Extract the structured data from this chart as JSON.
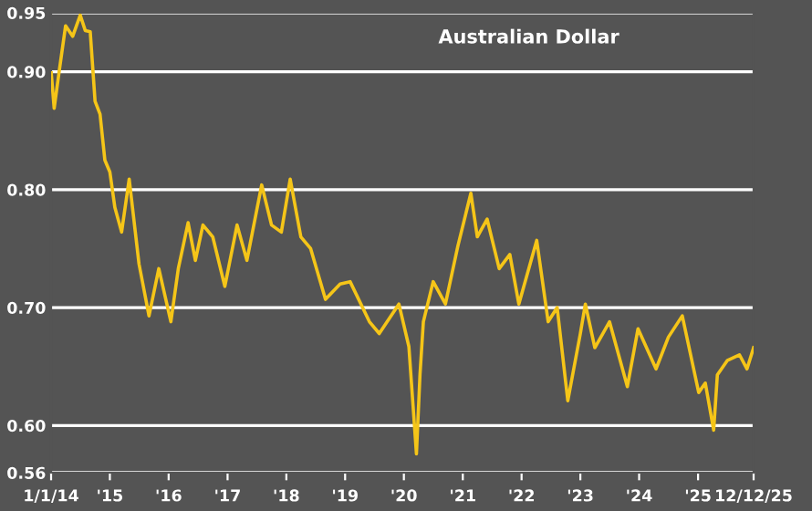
{
  "chart_data": {
    "type": "line",
    "title": "Australian Dollar",
    "x": [
      "2014-01-02",
      "2014-01-20",
      "2014-02-20",
      "2014-04-01",
      "2014-05-15",
      "2014-07-01",
      "2014-08-01",
      "2014-09-01",
      "2014-10-01",
      "2014-11-01",
      "2014-12-01",
      "2015-01-01",
      "2015-02-01",
      "2015-03-15",
      "2015-05-01",
      "2015-07-01",
      "2015-09-01",
      "2015-11-01",
      "2016-01-15",
      "2016-03-01",
      "2016-05-01",
      "2016-06-15",
      "2016-08-01",
      "2016-10-01",
      "2016-12-15",
      "2017-03-01",
      "2017-05-01",
      "2017-08-01",
      "2017-10-01",
      "2017-12-01",
      "2018-01-25",
      "2018-04-01",
      "2018-06-01",
      "2018-09-01",
      "2018-12-01",
      "2019-02-01",
      "2019-06-01",
      "2019-08-01",
      "2019-12-01",
      "2020-02-01",
      "2020-03-19",
      "2020-04-10",
      "2020-05-01",
      "2020-07-01",
      "2020-09-15",
      "2020-12-01",
      "2021-02-20",
      "2021-04-01",
      "2021-06-01",
      "2021-08-15",
      "2021-10-20",
      "2021-12-15",
      "2022-04-05",
      "2022-06-15",
      "2022-08-10",
      "2022-10-15",
      "2023-01-01",
      "2023-02-01",
      "2023-04-01",
      "2023-07-01",
      "2023-10-20",
      "2023-12-25",
      "2024-04-15",
      "2024-07-01",
      "2024-09-25",
      "2025-01-05",
      "2025-02-15",
      "2025-04-08",
      "2025-05-01",
      "2025-07-01",
      "2025-09-15",
      "2025-11-01",
      "2025-12-12"
    ],
    "series": [
      {
        "color": "#f5c518",
        "values": [
          0.899,
          0.869,
          0.9,
          0.939,
          0.93,
          0.948,
          0.935,
          0.934,
          0.875,
          0.864,
          0.825,
          0.815,
          0.785,
          0.764,
          0.809,
          0.737,
          0.693,
          0.733,
          0.688,
          0.733,
          0.772,
          0.74,
          0.77,
          0.76,
          0.718,
          0.77,
          0.74,
          0.804,
          0.77,
          0.764,
          0.809,
          0.76,
          0.75,
          0.707,
          0.72,
          0.722,
          0.688,
          0.678,
          0.703,
          0.667,
          0.576,
          0.643,
          0.688,
          0.722,
          0.703,
          0.752,
          0.797,
          0.76,
          0.775,
          0.733,
          0.745,
          0.703,
          0.757,
          0.688,
          0.7,
          0.621,
          0.678,
          0.703,
          0.666,
          0.688,
          0.633,
          0.682,
          0.648,
          0.675,
          0.693,
          0.628,
          0.636,
          0.596,
          0.643,
          0.655,
          0.66,
          0.648,
          0.666
        ]
      }
    ],
    "xlim": [
      "2014-01-01",
      "2025-12-12"
    ],
    "xticks": [
      {
        "value": "2014-01-01",
        "label": "1/1/14"
      },
      {
        "value": "2015-01-01",
        "label": "'15"
      },
      {
        "value": "2016-01-01",
        "label": "'16"
      },
      {
        "value": "2017-01-01",
        "label": "'17"
      },
      {
        "value": "2018-01-01",
        "label": "'18"
      },
      {
        "value": "2019-01-01",
        "label": "'19"
      },
      {
        "value": "2020-01-01",
        "label": "'20"
      },
      {
        "value": "2021-01-01",
        "label": "'21"
      },
      {
        "value": "2022-01-01",
        "label": "'22"
      },
      {
        "value": "2023-01-01",
        "label": "'23"
      },
      {
        "value": "2024-01-01",
        "label": "'24"
      },
      {
        "value": "2025-01-01",
        "label": "'25"
      },
      {
        "value": "2025-12-12",
        "label": "12/12/25"
      }
    ],
    "ylim": [
      0.56,
      0.95
    ],
    "yticks": [
      {
        "value": 0.56,
        "label": "0.56"
      },
      {
        "value": 0.6,
        "label": "0.60"
      },
      {
        "value": 0.7,
        "label": "0.70"
      },
      {
        "value": 0.8,
        "label": "0.80"
      },
      {
        "value": 0.9,
        "label": "0.90"
      },
      {
        "value": 0.95,
        "label": "0.95"
      }
    ],
    "grid": "y",
    "legend": false,
    "marker": "none",
    "line_style": "solid"
  }
}
